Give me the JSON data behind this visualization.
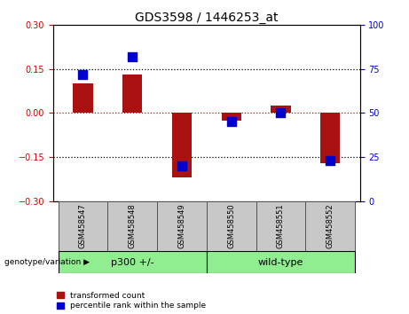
{
  "title": "GDS3598 / 1446253_at",
  "categories": [
    "GSM458547",
    "GSM458548",
    "GSM458549",
    "GSM458550",
    "GSM458551",
    "GSM458552"
  ],
  "red_values": [
    0.1,
    0.13,
    -0.22,
    -0.025,
    0.025,
    -0.17
  ],
  "blue_values_pct": [
    72,
    82,
    20,
    45,
    50,
    23
  ],
  "ylim_left": [
    -0.3,
    0.3
  ],
  "ylim_right": [
    0,
    100
  ],
  "yticks_left": [
    -0.3,
    -0.15,
    0.0,
    0.15,
    0.3
  ],
  "yticks_right": [
    0,
    25,
    50,
    75,
    100
  ],
  "hline_dotted": [
    0.15,
    -0.15
  ],
  "hline_red_dotted": 0.0,
  "red_color": "#aa1111",
  "blue_color": "#0000cc",
  "bar_width": 0.4,
  "blue_marker_size": 45,
  "group1_label": "p300 +/-",
  "group2_label": "wild-type",
  "group1_indices": [
    0,
    1,
    2
  ],
  "group2_indices": [
    3,
    4,
    5
  ],
  "group_color": "#90ee90",
  "sample_box_color": "#c8c8c8",
  "genotype_label": "genotype/variation",
  "legend_red": "transformed count",
  "legend_blue": "percentile rank within the sample",
  "left_axis_color": "#cc0000",
  "right_axis_color": "#0000cc",
  "background_color": "#ffffff",
  "tick_fontsize": 7,
  "title_fontsize": 10,
  "label_fontsize": 6,
  "group_fontsize": 8
}
